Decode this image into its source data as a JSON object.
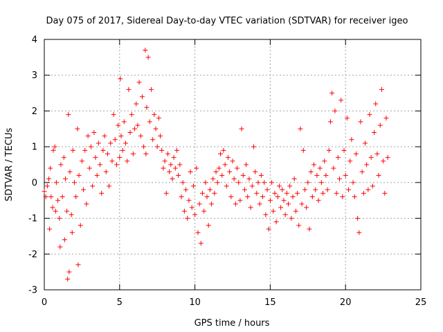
{
  "chart_data": {
    "type": "scatter",
    "title": "Day 075 of 2017, Sidereal Day-to-day VTEC variation (SDTVAR) for receiver igeo",
    "xlabel": "GPS time / hours",
    "ylabel": "SDTVAR / TECUs",
    "xlim": [
      0,
      25
    ],
    "ylim": [
      -3,
      4
    ],
    "xticks": [
      0,
      5,
      10,
      15,
      20,
      25
    ],
    "yticks": [
      -3,
      -2,
      -1,
      0,
      1,
      2,
      3,
      4
    ],
    "grid": true,
    "marker": "+",
    "colors": {
      "series": "#ff0000",
      "grid": "#a0a0a0",
      "axis": "#000000"
    },
    "series": [
      {
        "name": "SDTVAR",
        "points": [
          [
            0.0,
            -0.25
          ],
          [
            0.1,
            -0.4
          ],
          [
            0.2,
            -0.1
          ],
          [
            0.3,
            0.1
          ],
          [
            0.35,
            -1.3
          ],
          [
            0.4,
            0.4
          ],
          [
            0.45,
            -0.4
          ],
          [
            0.55,
            -0.7
          ],
          [
            0.6,
            0.9
          ],
          [
            0.7,
            1.0
          ],
          [
            0.75,
            -0.8
          ],
          [
            0.8,
            0.0
          ],
          [
            0.9,
            -0.5
          ],
          [
            1.0,
            -1.0
          ],
          [
            1.05,
            -1.8
          ],
          [
            1.1,
            0.5
          ],
          [
            1.2,
            -0.4
          ],
          [
            1.3,
            0.7
          ],
          [
            1.35,
            -1.6
          ],
          [
            1.4,
            0.1
          ],
          [
            1.5,
            -0.8
          ],
          [
            1.55,
            -2.7
          ],
          [
            1.6,
            1.9
          ],
          [
            1.65,
            -2.5
          ],
          [
            1.7,
            0.3
          ],
          [
            1.8,
            -0.9
          ],
          [
            1.85,
            -1.4
          ],
          [
            1.9,
            0.9
          ],
          [
            2.0,
            0.0
          ],
          [
            2.1,
            -0.4
          ],
          [
            2.2,
            1.5
          ],
          [
            2.25,
            -2.3
          ],
          [
            2.3,
            0.2
          ],
          [
            2.4,
            -1.2
          ],
          [
            2.5,
            0.6
          ],
          [
            2.6,
            -0.2
          ],
          [
            2.7,
            0.9
          ],
          [
            2.8,
            -0.6
          ],
          [
            2.9,
            1.3
          ],
          [
            3.0,
            0.4
          ],
          [
            3.1,
            1.0
          ],
          [
            3.2,
            -0.1
          ],
          [
            3.3,
            1.4
          ],
          [
            3.4,
            0.7
          ],
          [
            3.5,
            0.2
          ],
          [
            3.6,
            1.1
          ],
          [
            3.7,
            0.5
          ],
          [
            3.8,
            -0.3
          ],
          [
            3.9,
            0.9
          ],
          [
            4.0,
            1.3
          ],
          [
            4.1,
            0.3
          ],
          [
            4.2,
            0.8
          ],
          [
            4.3,
            -0.1
          ],
          [
            4.4,
            1.1
          ],
          [
            4.5,
            0.6
          ],
          [
            4.6,
            1.9
          ],
          [
            4.7,
            1.2
          ],
          [
            4.8,
            0.5
          ],
          [
            4.9,
            1.6
          ],
          [
            5.0,
            0.7
          ],
          [
            5.05,
            2.9
          ],
          [
            5.1,
            1.3
          ],
          [
            5.2,
            0.9
          ],
          [
            5.3,
            1.7
          ],
          [
            5.4,
            1.1
          ],
          [
            5.5,
            0.6
          ],
          [
            5.6,
            2.6
          ],
          [
            5.7,
            1.4
          ],
          [
            5.8,
            1.9
          ],
          [
            5.9,
            0.8
          ],
          [
            6.0,
            1.5
          ],
          [
            6.1,
            2.2
          ],
          [
            6.2,
            1.6
          ],
          [
            6.3,
            2.8
          ],
          [
            6.4,
            1.3
          ],
          [
            6.5,
            2.4
          ],
          [
            6.6,
            1.0
          ],
          [
            6.7,
            3.7
          ],
          [
            6.75,
            0.8
          ],
          [
            6.8,
            2.1
          ],
          [
            6.9,
            3.5
          ],
          [
            7.0,
            1.7
          ],
          [
            7.1,
            2.6
          ],
          [
            7.2,
            1.2
          ],
          [
            7.3,
            1.9
          ],
          [
            7.4,
            1.5
          ],
          [
            7.5,
            1.0
          ],
          [
            7.6,
            1.8
          ],
          [
            7.7,
            1.3
          ],
          [
            7.8,
            0.9
          ],
          [
            7.9,
            0.4
          ],
          [
            8.0,
            0.6
          ],
          [
            8.1,
            -0.3
          ],
          [
            8.2,
            0.8
          ],
          [
            8.3,
            0.3
          ],
          [
            8.4,
            0.5
          ],
          [
            8.5,
            0.1
          ],
          [
            8.6,
            0.7
          ],
          [
            8.7,
            0.4
          ],
          [
            8.8,
            0.9
          ],
          [
            8.9,
            0.2
          ],
          [
            9.0,
            0.5
          ],
          [
            9.1,
            -0.4
          ],
          [
            9.2,
            0.0
          ],
          [
            9.3,
            -0.8
          ],
          [
            9.4,
            -0.2
          ],
          [
            9.5,
            -1.0
          ],
          [
            9.6,
            -0.5
          ],
          [
            9.7,
            0.3
          ],
          [
            9.8,
            -0.7
          ],
          [
            9.9,
            -0.1
          ],
          [
            10.0,
            -0.9
          ],
          [
            10.1,
            0.4
          ],
          [
            10.2,
            -1.4
          ],
          [
            10.3,
            -0.6
          ],
          [
            10.4,
            -1.7
          ],
          [
            10.5,
            -0.3
          ],
          [
            10.6,
            -0.8
          ],
          [
            10.7,
            0.0
          ],
          [
            10.8,
            -0.4
          ],
          [
            10.9,
            -1.2
          ],
          [
            11.0,
            -0.2
          ],
          [
            11.1,
            -0.6
          ],
          [
            11.2,
            0.1
          ],
          [
            11.3,
            -0.3
          ],
          [
            11.4,
            0.3
          ],
          [
            11.5,
            0.0
          ],
          [
            11.6,
            0.4
          ],
          [
            11.7,
            0.8
          ],
          [
            11.8,
            0.2
          ],
          [
            11.9,
            0.9
          ],
          [
            12.0,
            0.5
          ],
          [
            12.1,
            -0.1
          ],
          [
            12.2,
            0.7
          ],
          [
            12.3,
            0.3
          ],
          [
            12.4,
            -0.4
          ],
          [
            12.5,
            0.6
          ],
          [
            12.6,
            0.1
          ],
          [
            12.7,
            -0.6
          ],
          [
            12.8,
            0.4
          ],
          [
            12.9,
            0.0
          ],
          [
            13.0,
            -0.5
          ],
          [
            13.1,
            1.5
          ],
          [
            13.2,
            0.2
          ],
          [
            13.3,
            -0.2
          ],
          [
            13.4,
            0.5
          ],
          [
            13.5,
            -0.4
          ],
          [
            13.6,
            0.1
          ],
          [
            13.7,
            -0.7
          ],
          [
            13.8,
            -0.1
          ],
          [
            13.9,
            1.0
          ],
          [
            14.0,
            0.3
          ],
          [
            14.1,
            -0.3
          ],
          [
            14.2,
            0.0
          ],
          [
            14.3,
            -0.6
          ],
          [
            14.4,
            0.2
          ],
          [
            14.5,
            -0.4
          ],
          [
            14.6,
            0.0
          ],
          [
            14.7,
            -0.9
          ],
          [
            14.8,
            -0.2
          ],
          [
            14.9,
            -1.3
          ],
          [
            15.0,
            -0.5
          ],
          [
            15.1,
            0.0
          ],
          [
            15.2,
            -0.8
          ],
          [
            15.3,
            -0.3
          ],
          [
            15.4,
            -1.1
          ],
          [
            15.5,
            -0.4
          ],
          [
            15.6,
            -0.1
          ],
          [
            15.7,
            -0.7
          ],
          [
            15.8,
            -0.2
          ],
          [
            15.9,
            -0.5
          ],
          [
            16.0,
            -0.9
          ],
          [
            16.1,
            -0.3
          ],
          [
            16.2,
            -0.6
          ],
          [
            16.3,
            -0.1
          ],
          [
            16.4,
            -1.0
          ],
          [
            16.5,
            -0.4
          ],
          [
            16.6,
            0.1
          ],
          [
            16.7,
            -0.8
          ],
          [
            16.8,
            -0.3
          ],
          [
            16.9,
            -1.2
          ],
          [
            17.0,
            1.5
          ],
          [
            17.1,
            -0.6
          ],
          [
            17.2,
            0.9
          ],
          [
            17.3,
            -0.2
          ],
          [
            17.4,
            -0.7
          ],
          [
            17.5,
            0.0
          ],
          [
            17.6,
            -1.3
          ],
          [
            17.7,
            0.3
          ],
          [
            17.8,
            -0.4
          ],
          [
            17.9,
            0.5
          ],
          [
            18.0,
            -0.2
          ],
          [
            18.1,
            0.2
          ],
          [
            18.2,
            -0.5
          ],
          [
            18.3,
            0.4
          ],
          [
            18.4,
            0.0
          ],
          [
            18.5,
            -0.3
          ],
          [
            18.6,
            0.6
          ],
          [
            18.7,
            0.2
          ],
          [
            18.8,
            -0.2
          ],
          [
            18.9,
            0.9
          ],
          [
            19.0,
            1.7
          ],
          [
            19.1,
            2.5
          ],
          [
            19.2,
            0.4
          ],
          [
            19.3,
            2.0
          ],
          [
            19.4,
            -0.3
          ],
          [
            19.5,
            0.7
          ],
          [
            19.6,
            0.1
          ],
          [
            19.7,
            2.3
          ],
          [
            19.8,
            -0.4
          ],
          [
            19.9,
            0.9
          ],
          [
            20.0,
            0.2
          ],
          [
            20.1,
            1.8
          ],
          [
            20.2,
            -0.2
          ],
          [
            20.3,
            0.6
          ],
          [
            20.4,
            1.2
          ],
          [
            20.5,
            0.0
          ],
          [
            20.6,
            -0.4
          ],
          [
            20.7,
            0.8
          ],
          [
            20.8,
            -1.0
          ],
          [
            20.9,
            -1.4
          ],
          [
            21.0,
            1.7
          ],
          [
            21.1,
            0.3
          ],
          [
            21.2,
            -0.3
          ],
          [
            21.3,
            1.1
          ],
          [
            21.4,
            0.5
          ],
          [
            21.5,
            -0.2
          ],
          [
            21.6,
            1.9
          ],
          [
            21.7,
            0.7
          ],
          [
            21.8,
            -0.1
          ],
          [
            21.9,
            1.4
          ],
          [
            22.0,
            2.2
          ],
          [
            22.1,
            0.8
          ],
          [
            22.2,
            0.2
          ],
          [
            22.3,
            1.6
          ],
          [
            22.4,
            2.6
          ],
          [
            22.5,
            0.6
          ],
          [
            22.6,
            -0.3
          ],
          [
            22.7,
            1.8
          ],
          [
            22.8,
            0.7
          ]
        ]
      }
    ]
  }
}
